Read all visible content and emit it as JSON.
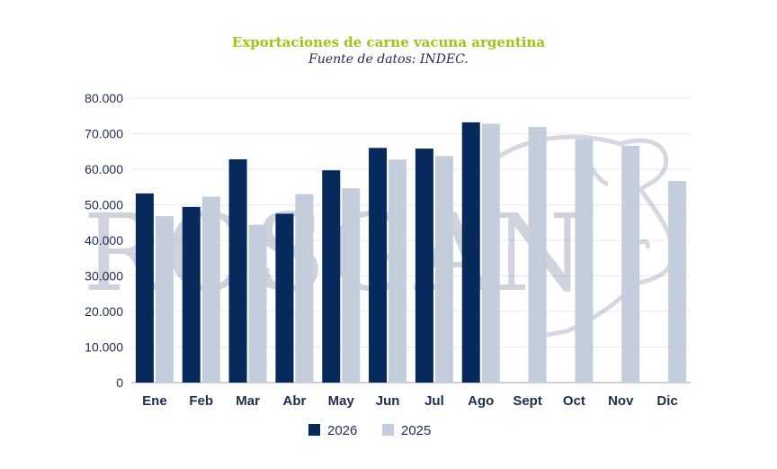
{
  "chart_data": {
    "type": "bar",
    "title": "Exportaciones de carne vacuna argentina",
    "subtitle": "Fuente de datos: INDEC.",
    "categories": [
      "Ene",
      "Feb",
      "Mar",
      "Abr",
      "May",
      "Jun",
      "Jul",
      "Ago",
      "Sept",
      "Oct",
      "Nov",
      "Dic"
    ],
    "series": [
      {
        "name": "2026",
        "color": "#062a5b",
        "values": [
          53200,
          49400,
          62800,
          47500,
          59700,
          66000,
          65800,
          73200,
          null,
          null,
          null,
          null
        ]
      },
      {
        "name": "2025",
        "color": "#c3cddb",
        "values": [
          46800,
          52300,
          44400,
          53000,
          54600,
          62700,
          63700,
          72800,
          71900,
          68400,
          66600,
          56700
        ]
      }
    ],
    "yticks": [
      "0",
      "10.000",
      "20.000",
      "30.000",
      "40.000",
      "50.000",
      "60.000",
      "70.000",
      "80.000"
    ],
    "ylim": [
      0,
      80000
    ],
    "grid": true,
    "legend": "bottom",
    "watermark": "ROSGAN"
  }
}
